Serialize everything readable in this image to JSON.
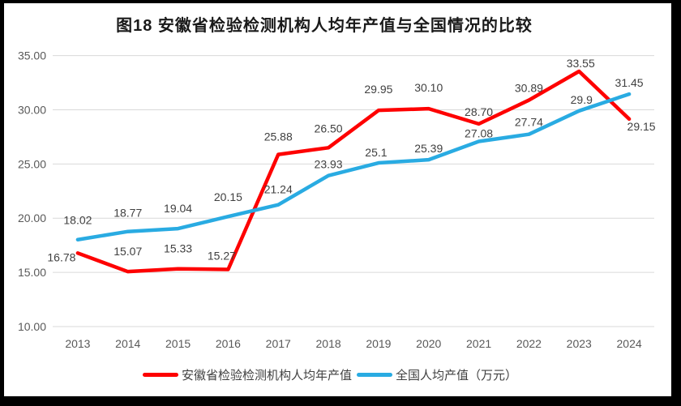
{
  "title": "图18 安徽省检验检测机构人均年产值与全国情况的比较",
  "chart_data": {
    "type": "line",
    "title": "图18 安徽省检验检测机构人均年产值与全国情况的比较",
    "categories": [
      "2013",
      "2014",
      "2015",
      "2016",
      "2017",
      "2018",
      "2019",
      "2020",
      "2021",
      "2022",
      "2023",
      "2024"
    ],
    "xlabel": "",
    "ylabel": "",
    "y_axis": {
      "min": 10,
      "max": 35,
      "tick_step": 5,
      "ticks": [
        "10.00",
        "15.00",
        "20.00",
        "25.00",
        "30.00",
        "35.00"
      ],
      "grid": true
    },
    "series": [
      {
        "name": "安徽省检验检测机构人均年产值",
        "color": "#FE0000",
        "values": [
          16.78,
          15.07,
          15.33,
          15.27,
          25.88,
          26.5,
          29.95,
          30.1,
          28.7,
          30.89,
          33.55,
          29.15
        ],
        "labels": [
          "16.78",
          "15.07",
          "15.33",
          "15.27",
          "25.88",
          "26.50",
          "29.95",
          "30.10",
          "28.70",
          "30.89",
          "33.55",
          "29.15"
        ]
      },
      {
        "name": "全国人均产值（万元）",
        "color": "#29ABE2",
        "values": [
          18.02,
          18.77,
          19.04,
          20.15,
          21.24,
          23.93,
          25.1,
          25.39,
          27.08,
          27.74,
          29.9,
          31.45
        ],
        "labels": [
          "18.02",
          "18.77",
          "19.04",
          "20.15",
          "21.24",
          "23.93",
          "25.1",
          "25.39",
          "27.08",
          "27.74",
          "29.9",
          "31.45"
        ]
      }
    ],
    "legend_position": "bottom",
    "grid_color": "#D9D9D9",
    "axis_label_color": "#595959",
    "data_label_color": "#404040",
    "frame_color": "#000000",
    "background_color": "#FFFFFF"
  }
}
